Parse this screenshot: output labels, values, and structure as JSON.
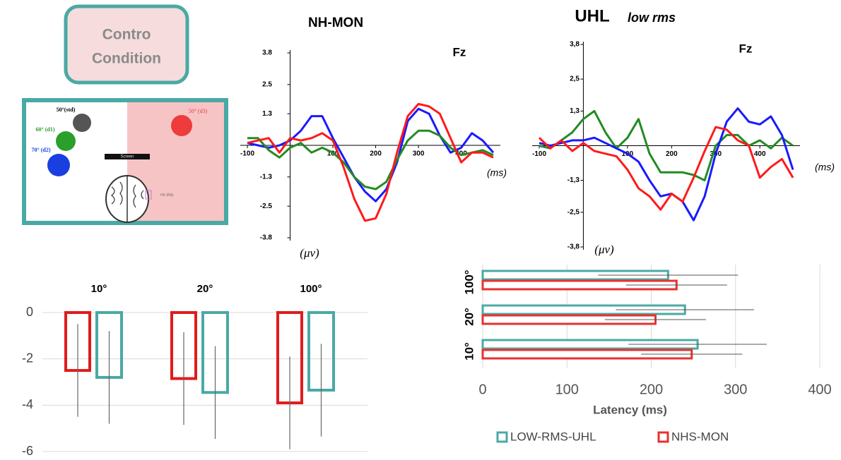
{
  "condition_box": {
    "lines": [
      "Contro",
      "Condition"
    ]
  },
  "setup": {
    "labels": [
      "50°(std)",
      "60° (d1)",
      "70° (d2)",
      "50° (d3)",
      "Screen",
      "ear plug"
    ]
  },
  "chart_data": [
    {
      "type": "line",
      "title": "NH-MON",
      "channel": "Fz",
      "x_label": "(ms)",
      "y_label": "(μv)",
      "x": [
        -100,
        -75,
        -50,
        -25,
        0,
        25,
        50,
        75,
        100,
        125,
        150,
        175,
        200,
        225,
        250,
        275,
        300,
        325,
        350,
        375,
        400,
        425,
        450,
        475
      ],
      "xlim": [
        -100,
        475
      ],
      "xticks": [
        -100,
        100,
        200,
        300,
        400
      ],
      "ylim": [
        -3.8,
        3.8
      ],
      "yticks": [
        3.8,
        2.5,
        1.3,
        -1.3,
        -2.5,
        -3.8
      ],
      "series": [
        {
          "color": "#1a1aff",
          "values": [
            0.1,
            0.0,
            -0.1,
            0.0,
            0.2,
            0.6,
            1.2,
            1.2,
            0.3,
            -0.5,
            -1.3,
            -1.9,
            -2.3,
            -1.8,
            -0.7,
            1.0,
            1.5,
            1.3,
            0.4,
            -0.3,
            -0.1,
            0.5,
            0.2,
            -0.3
          ]
        },
        {
          "color": "#228b22",
          "values": [
            0.3,
            0.3,
            -0.2,
            -0.5,
            -0.1,
            0.1,
            -0.3,
            -0.1,
            -0.3,
            -0.7,
            -1.3,
            -1.7,
            -1.8,
            -1.5,
            -0.6,
            0.2,
            0.6,
            0.6,
            0.4,
            -0.1,
            -0.4,
            -0.3,
            -0.2,
            -0.4
          ]
        },
        {
          "color": "#ff1a1a",
          "values": [
            0.1,
            0.2,
            0.3,
            -0.3,
            0.3,
            0.2,
            0.3,
            0.5,
            0.2,
            -0.9,
            -2.2,
            -3.1,
            -3.0,
            -2.0,
            -0.3,
            1.2,
            1.7,
            1.6,
            1.3,
            0.3,
            -0.7,
            -0.3,
            -0.3,
            -0.5
          ]
        }
      ]
    },
    {
      "type": "line",
      "title": "UHL",
      "subtitle": "low rms",
      "channel": "Fz",
      "x_label": "(ms)",
      "y_label": "(μv)",
      "x": [
        -100,
        -75,
        -50,
        -25,
        0,
        25,
        50,
        75,
        100,
        125,
        150,
        175,
        200,
        225,
        250,
        275,
        300,
        325,
        350,
        375,
        400,
        425,
        450,
        475
      ],
      "xlim": [
        -100,
        475
      ],
      "xticks": [
        -100,
        100,
        200,
        300,
        400
      ],
      "ylim": [
        -3.8,
        3.8
      ],
      "yticks": [
        {
          "value": 3.8,
          "label": "3,8"
        },
        {
          "value": 2.5,
          "label": "2,5"
        },
        {
          "value": 1.3,
          "label": "1,3"
        },
        {
          "value": -1.3,
          "label": "-1,3"
        },
        {
          "value": -2.5,
          "label": "-2,5"
        },
        {
          "value": -3.8,
          "label": "-3,8"
        }
      ],
      "series": [
        {
          "color": "#228b22",
          "values": [
            0.0,
            -0.1,
            0.2,
            0.5,
            1.0,
            1.3,
            0.5,
            -0.1,
            0.3,
            1.0,
            -0.3,
            -1.0,
            -1.0,
            -1.0,
            -1.1,
            -1.3,
            0.0,
            0.4,
            0.4,
            0.0,
            0.2,
            -0.1,
            0.3,
            0.0
          ]
        },
        {
          "color": "#1a1aff",
          "values": [
            0.1,
            0.0,
            0.1,
            0.2,
            0.2,
            0.3,
            0.1,
            -0.1,
            -0.3,
            -0.6,
            -1.3,
            -1.9,
            -1.8,
            -2.1,
            -2.8,
            -1.9,
            -0.3,
            0.9,
            1.4,
            0.9,
            0.8,
            1.1,
            0.4,
            -0.9
          ]
        },
        {
          "color": "#ff1a1a",
          "values": [
            0.3,
            -0.1,
            0.2,
            -0.2,
            0.1,
            -0.2,
            -0.3,
            -0.4,
            -0.9,
            -1.6,
            -1.9,
            -2.4,
            -1.8,
            -2.1,
            -1.2,
            -0.2,
            0.7,
            0.6,
            0.2,
            0.0,
            -1.2,
            -0.8,
            -0.5,
            -1.2
          ]
        }
      ]
    },
    {
      "type": "bar",
      "categories": [
        "10°",
        "20°",
        "100°"
      ],
      "ylim": [
        -6,
        0
      ],
      "yticks": [
        0,
        -2,
        -4,
        -6
      ],
      "grid": true,
      "series": [
        {
          "color": "#e01b1b",
          "values": [
            -2.5,
            -2.85,
            -3.9
          ],
          "errors": [
            2,
            2,
            2
          ]
        },
        {
          "color": "#4aa9a4",
          "values": [
            -2.8,
            -3.45,
            -3.35
          ],
          "errors": [
            2,
            2,
            2
          ]
        }
      ]
    },
    {
      "type": "hbar",
      "categories": [
        "100°",
        "20°",
        "10°"
      ],
      "xlim": [
        0,
        400
      ],
      "xticks": [
        0,
        100,
        200,
        300,
        400
      ],
      "x_label": "Latency (ms)",
      "grid": true,
      "legend": "bottom",
      "series": [
        {
          "name": "LOW-RMS-UHL",
          "color": "#4aa9a4",
          "values": [
            220,
            240,
            255
          ],
          "errors": [
            83,
            82,
            82
          ]
        },
        {
          "name": "NHS-MON",
          "color": "#e8312f",
          "values": [
            230,
            205,
            248
          ],
          "errors": [
            60,
            60,
            60
          ]
        }
      ]
    }
  ]
}
